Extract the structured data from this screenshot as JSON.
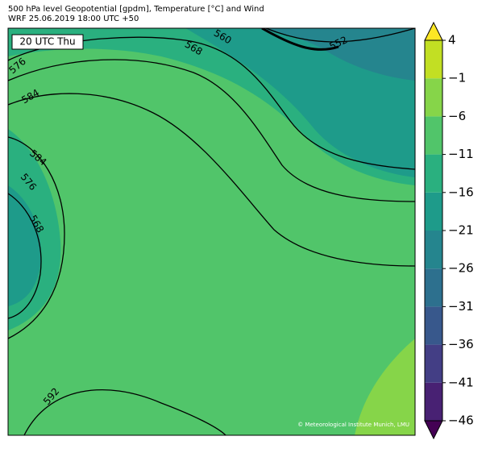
{
  "header": {
    "title": "500 hPa level Geopotential [gpdm], Temperature [°C] and Wind",
    "subtitle": "WRF 25.06.2019 18:00 UTC +50"
  },
  "time_label": "20 UTC Thu",
  "contour_labels": [
    576,
    584,
    568,
    560,
    552,
    584,
    576,
    568,
    592
  ],
  "credit": "© Meteorological Institute Munich, LMU",
  "colorbar": {
    "lim": [
      -46,
      4
    ],
    "ticks": [
      {
        "value": -46,
        "label": "−46"
      },
      {
        "value": -41,
        "label": "−41"
      },
      {
        "value": -36,
        "label": "−36"
      },
      {
        "value": -31,
        "label": "−31"
      },
      {
        "value": -26,
        "label": "−26"
      },
      {
        "value": -21,
        "label": "−21"
      },
      {
        "value": -16,
        "label": "−16"
      },
      {
        "value": -11,
        "label": "−11"
      },
      {
        "value": -6,
        "label": "−6"
      },
      {
        "value": -1,
        "label": "−1"
      },
      4
    ],
    "colors": [
      "#482173",
      "#433e85",
      "#38588c",
      "#2d708e",
      "#25858e",
      "#1e9b8a",
      "#2ab07f",
      "#51c56a",
      "#86d549",
      "#c2df23"
    ],
    "under_color": "#440154",
    "over_color": "#fde725"
  }
}
